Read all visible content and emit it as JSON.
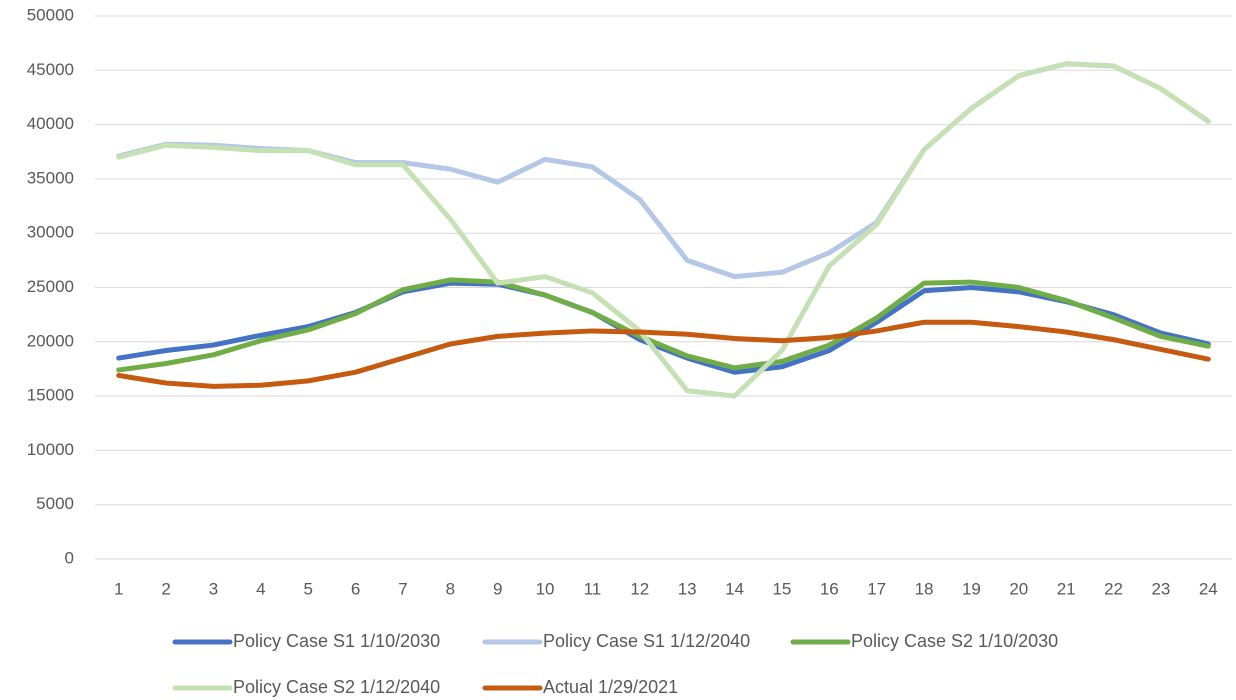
{
  "chart_data": {
    "type": "line",
    "categories": [
      "1",
      "2",
      "3",
      "4",
      "5",
      "6",
      "7",
      "8",
      "9",
      "10",
      "11",
      "12",
      "13",
      "14",
      "15",
      "16",
      "17",
      "18",
      "19",
      "20",
      "21",
      "22",
      "23",
      "24"
    ],
    "series": [
      {
        "name": "Policy Case S1 1/10/2030",
        "color": "#4472c4",
        "values": [
          18500,
          19200,
          19700,
          20600,
          21400,
          22700,
          24600,
          25400,
          25300,
          24300,
          22700,
          20200,
          18500,
          17200,
          17700,
          19200,
          21800,
          24700,
          25000,
          24600,
          23700,
          22500,
          20800,
          19800
        ]
      },
      {
        "name": "Policy Case S1 1/12/2040",
        "color": "#b4c7e7",
        "values": [
          37100,
          38200,
          38100,
          37800,
          37600,
          36500,
          36500,
          35900,
          34700,
          36800,
          36100,
          33100,
          27500,
          26000,
          26400,
          28200,
          31000,
          37700,
          41500,
          44500,
          45600,
          45400,
          43300,
          40300
        ]
      },
      {
        "name": "Policy Case S2 1/10/2030",
        "color": "#70ad47",
        "values": [
          17400,
          18000,
          18800,
          20100,
          21100,
          22600,
          24800,
          25700,
          25500,
          24300,
          22700,
          20500,
          18700,
          17600,
          18200,
          19700,
          22200,
          25400,
          25500,
          25000,
          23800,
          22200,
          20500,
          19600
        ]
      },
      {
        "name": "Policy Case S2 1/12/2040",
        "color": "#c5e0b4",
        "values": [
          37000,
          38100,
          37900,
          37600,
          37600,
          36300,
          36300,
          31300,
          25400,
          26000,
          24500,
          21000,
          15500,
          15000,
          19200,
          27000,
          30800,
          37700,
          41500,
          44500,
          45600,
          45400,
          43300,
          40300
        ]
      },
      {
        "name": "Actual 1/29/2021",
        "color": "#c55a11",
        "values": [
          16900,
          16200,
          15900,
          16000,
          16400,
          17200,
          18500,
          19800,
          20500,
          20800,
          21000,
          20900,
          20700,
          20300,
          20100,
          20400,
          21000,
          21800,
          21800,
          21400,
          20900,
          20200,
          19300,
          18400
        ]
      }
    ],
    "ylim": [
      0,
      50000
    ],
    "yticks": [
      0,
      5000,
      10000,
      15000,
      20000,
      25000,
      30000,
      35000,
      40000,
      45000,
      50000
    ],
    "grid": true,
    "legend": "bottom"
  }
}
